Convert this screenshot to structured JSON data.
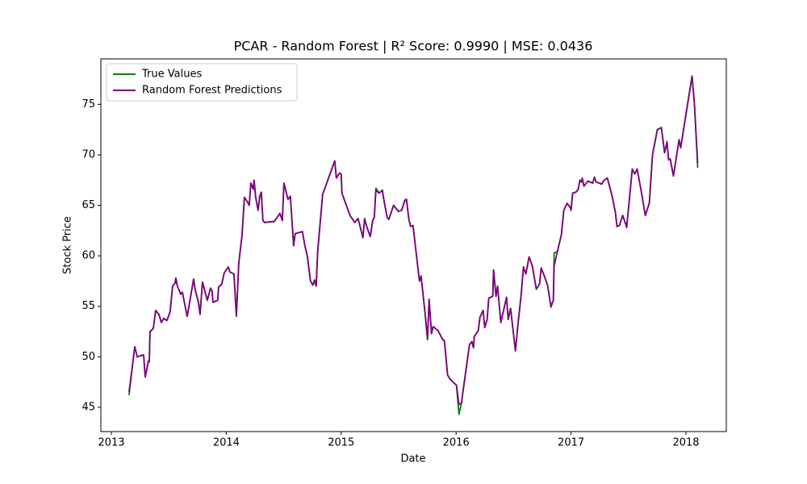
{
  "chart_data": {
    "type": "line",
    "title": "PCAR - Random Forest | R² Score: 0.9990 | MSE: 0.0436",
    "xlabel": "Date",
    "ylabel": "Stock Price",
    "x": [
      2013.154,
      2013.204,
      2013.225,
      2013.281,
      2013.295,
      2013.323,
      2013.33,
      2013.337,
      2013.365,
      2013.386,
      2013.414,
      2013.435,
      2013.456,
      2013.484,
      2013.512,
      2013.533,
      2013.554,
      2013.561,
      2013.575,
      2013.604,
      2013.618,
      2013.66,
      2013.716,
      2013.73,
      2013.758,
      2013.772,
      2013.793,
      2013.821,
      2013.835,
      2013.863,
      2013.877,
      2013.884,
      2013.926,
      2013.933,
      2013.961,
      2013.982,
      2014.018,
      2014.032,
      2014.067,
      2014.088,
      2014.109,
      2014.137,
      2014.158,
      2014.186,
      2014.2,
      2014.214,
      2014.235,
      2014.242,
      2014.256,
      2014.277,
      2014.291,
      2014.305,
      2014.319,
      2014.333,
      2014.418,
      2014.467,
      2014.488,
      2014.502,
      2014.537,
      2014.558,
      2014.586,
      2014.6,
      2014.663,
      2014.684,
      2014.705,
      2014.733,
      2014.754,
      2014.768,
      2014.782,
      2014.796,
      2014.839,
      2014.944,
      2014.958,
      2014.986,
      2015.0,
      2015.007,
      2015.077,
      2015.119,
      2015.147,
      2015.189,
      2015.204,
      2015.225,
      2015.253,
      2015.274,
      2015.288,
      2015.302,
      2015.33,
      2015.358,
      2015.372,
      2015.4,
      2015.414,
      2015.456,
      2015.498,
      2015.526,
      2015.554,
      2015.568,
      2015.589,
      2015.604,
      2015.625,
      2015.681,
      2015.695,
      2015.73,
      2015.751,
      2015.765,
      2015.786,
      2015.8,
      2015.842,
      2015.884,
      2015.898,
      2015.926,
      2015.947,
      2015.982,
      2016.003,
      2016.025,
      2016.046,
      2016.081,
      2016.116,
      2016.137,
      2016.151,
      2016.158,
      2016.193,
      2016.207,
      2016.235,
      2016.249,
      2016.27,
      2016.284,
      2016.319,
      2016.326,
      2016.347,
      2016.361,
      2016.389,
      2016.439,
      2016.453,
      2016.474,
      2016.516,
      2016.537,
      2016.565,
      2016.586,
      2016.607,
      2016.635,
      2016.663,
      2016.698,
      2016.726,
      2016.74,
      2016.768,
      2016.796,
      2016.825,
      2016.846,
      2016.853,
      2016.881,
      2016.916,
      2016.937,
      2016.965,
      2016.993,
      2017.0,
      2017.014,
      2017.042,
      2017.063,
      2017.077,
      2017.091,
      2017.098,
      2017.112,
      2017.147,
      2017.189,
      2017.204,
      2017.218,
      2017.246,
      2017.267,
      2017.288,
      2017.316,
      2017.358,
      2017.386,
      2017.4,
      2017.421,
      2017.449,
      2017.477,
      2017.484,
      2017.533,
      2017.554,
      2017.575,
      2017.611,
      2017.646,
      2017.681,
      2017.709,
      2017.751,
      2017.786,
      2017.814,
      2017.835,
      2017.849,
      2017.863,
      2017.891,
      2017.94,
      2017.954,
      2018.018,
      2018.053,
      2018.074,
      2018.102
    ],
    "series": [
      {
        "name": "True Values",
        "color": "#008000",
        "values": [
          46.2,
          51.0,
          50.0,
          50.2,
          48.0,
          49.6,
          49.5,
          52.5,
          52.8,
          54.6,
          54.2,
          53.4,
          53.8,
          53.6,
          54.5,
          57.0,
          57.3,
          57.8,
          57.0,
          56.2,
          56.4,
          54.0,
          57.7,
          56.6,
          55.4,
          54.2,
          57.4,
          56.2,
          55.6,
          56.8,
          56.5,
          55.4,
          55.6,
          56.9,
          57.2,
          58.3,
          58.9,
          58.4,
          58.2,
          54.0,
          59.3,
          62.0,
          65.8,
          65.3,
          65.0,
          67.2,
          66.6,
          67.5,
          65.8,
          64.5,
          65.9,
          66.3,
          63.5,
          63.3,
          63.4,
          64.2,
          63.5,
          67.2,
          65.6,
          65.9,
          61.0,
          62.2,
          62.4,
          61.0,
          60.0,
          57.5,
          57.1,
          57.6,
          57.0,
          60.5,
          66.1,
          69.4,
          67.7,
          68.2,
          68.1,
          66.2,
          64.0,
          63.3,
          63.7,
          61.8,
          63.7,
          62.8,
          61.9,
          63.5,
          63.8,
          66.7,
          66.2,
          66.5,
          65.5,
          63.8,
          63.6,
          65.0,
          64.4,
          64.5,
          65.5,
          65.6,
          63.6,
          62.9,
          63.0,
          57.5,
          58.0,
          54.3,
          51.7,
          55.7,
          52.3,
          53.0,
          52.6,
          51.7,
          51.6,
          48.2,
          47.8,
          47.4,
          47.2,
          44.3,
          45.4,
          48.3,
          51.2,
          51.5,
          50.9,
          52.0,
          52.6,
          53.9,
          54.6,
          52.9,
          53.7,
          55.8,
          56.0,
          58.6,
          56.0,
          57.0,
          53.4,
          55.9,
          53.7,
          54.8,
          50.6,
          53.1,
          56.0,
          58.9,
          58.2,
          59.9,
          59.0,
          56.7,
          57.2,
          58.8,
          58.0,
          57.1,
          54.9,
          55.6,
          60.3,
          60.4,
          62.1,
          64.5,
          65.2,
          64.8,
          64.5,
          66.2,
          66.3,
          66.6,
          67.5,
          67.3,
          67.7,
          66.9,
          67.4,
          67.2,
          67.8,
          67.3,
          67.2,
          67.1,
          67.5,
          67.7,
          65.9,
          64.3,
          62.9,
          63.0,
          64.0,
          63.1,
          62.8,
          68.6,
          68.1,
          68.6,
          66.4,
          64.0,
          65.2,
          70.0,
          72.5,
          72.7,
          70.2,
          71.3,
          69.5,
          69.6,
          67.9,
          71.5,
          70.7,
          75.3,
          77.8,
          75.0,
          68.7
        ]
      },
      {
        "name": "Random Forest Predictions",
        "color": "#800080",
        "values": [
          46.5,
          51.0,
          50.0,
          50.2,
          48.0,
          49.6,
          49.5,
          52.5,
          52.8,
          54.6,
          54.2,
          53.4,
          53.8,
          53.6,
          54.5,
          57.0,
          57.3,
          57.8,
          57.0,
          56.2,
          56.4,
          54.0,
          57.7,
          56.6,
          55.4,
          54.2,
          57.4,
          56.2,
          55.6,
          56.8,
          56.5,
          55.4,
          55.6,
          56.9,
          57.2,
          58.3,
          58.9,
          58.4,
          58.2,
          54.1,
          59.3,
          62.0,
          65.8,
          65.3,
          65.0,
          67.2,
          66.6,
          67.5,
          65.8,
          64.5,
          65.9,
          66.3,
          63.5,
          63.3,
          63.4,
          64.2,
          63.5,
          67.2,
          65.6,
          65.9,
          61.0,
          62.2,
          62.4,
          61.0,
          60.0,
          57.5,
          57.1,
          57.6,
          57.0,
          60.5,
          66.1,
          69.4,
          67.7,
          68.2,
          68.1,
          66.2,
          64.0,
          63.3,
          63.7,
          61.8,
          63.6,
          62.8,
          61.9,
          63.5,
          63.8,
          66.5,
          66.2,
          66.5,
          65.5,
          63.8,
          63.6,
          65.0,
          64.4,
          64.5,
          65.5,
          65.6,
          63.6,
          62.9,
          63.0,
          57.5,
          58.0,
          54.3,
          51.8,
          55.7,
          52.3,
          53.0,
          52.6,
          51.7,
          51.6,
          48.2,
          47.8,
          47.4,
          47.2,
          45.3,
          45.4,
          48.3,
          51.2,
          51.5,
          50.9,
          52.0,
          52.6,
          53.9,
          54.6,
          52.9,
          53.7,
          55.8,
          56.0,
          58.6,
          56.0,
          57.0,
          53.4,
          55.9,
          53.7,
          54.8,
          50.6,
          53.1,
          56.0,
          58.9,
          58.2,
          59.9,
          59.0,
          56.7,
          57.2,
          58.8,
          58.0,
          57.1,
          55.0,
          55.6,
          59.0,
          60.4,
          62.1,
          64.5,
          65.2,
          64.8,
          64.5,
          66.2,
          66.3,
          66.6,
          67.5,
          67.3,
          67.7,
          66.9,
          67.4,
          67.2,
          67.8,
          67.3,
          67.2,
          67.1,
          67.5,
          67.7,
          65.9,
          64.3,
          62.9,
          63.0,
          64.0,
          63.1,
          62.8,
          68.6,
          68.1,
          68.6,
          66.4,
          64.0,
          65.2,
          70.0,
          72.5,
          72.7,
          70.2,
          71.3,
          69.5,
          69.6,
          67.9,
          71.5,
          70.7,
          75.3,
          77.8,
          75.0,
          69.2
        ]
      }
    ],
    "xlim": [
      2012.909,
      2018.351
    ],
    "xticks": [
      2013,
      2014,
      2015,
      2016,
      2017,
      2018
    ],
    "ylim": [
      42.6,
      79.5
    ],
    "yticks": [
      45,
      50,
      55,
      60,
      65,
      70,
      75
    ],
    "legend": "upper left",
    "grid": false
  }
}
